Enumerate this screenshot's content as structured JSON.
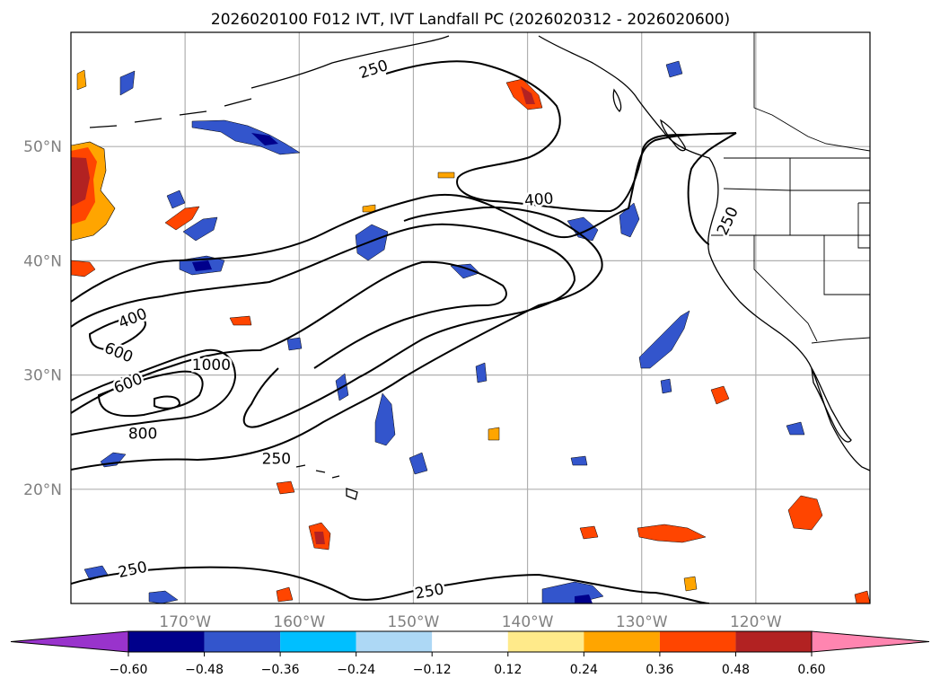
{
  "title": "2026020100 F012 IVT, IVT Landfall PC (2026020312 - 2026020600)",
  "map": {
    "lon_range": [
      180,
      110
    ],
    "lat_range": [
      10,
      60
    ],
    "lat_gridlines": [
      50,
      40,
      30,
      20
    ],
    "lon_gridlines": [
      170,
      160,
      150,
      140,
      130,
      120
    ],
    "lat_labels": [
      "50°N",
      "40°N",
      "30°N",
      "20°N"
    ],
    "lon_labels": [
      "170°W",
      "160°W",
      "150°W",
      "140°W",
      "130°W",
      "120°W"
    ]
  },
  "ivt_contour_labels": [
    {
      "text": "250",
      "lon": 153.5,
      "lat": 56.8,
      "angle": -18
    },
    {
      "text": "400",
      "lon": 139.0,
      "lat": 45.4,
      "angle": -5
    },
    {
      "text": "250",
      "lon": 122.5,
      "lat": 43.5,
      "angle": -65
    },
    {
      "text": "400",
      "lon": 174.6,
      "lat": 35.0,
      "angle": -22
    },
    {
      "text": "600",
      "lon": 175.8,
      "lat": 32.0,
      "angle": 22
    },
    {
      "text": "600",
      "lon": 175.0,
      "lat": 29.3,
      "angle": -22
    },
    {
      "text": "1000",
      "lon": 167.7,
      "lat": 30.9,
      "angle": 0
    },
    {
      "text": "800",
      "lon": 173.7,
      "lat": 24.9,
      "angle": 0
    },
    {
      "text": "250",
      "lon": 162.0,
      "lat": 22.7,
      "angle": 0
    },
    {
      "text": "250",
      "lon": 174.6,
      "lat": 13.0,
      "angle": -12
    },
    {
      "text": "250",
      "lon": 148.6,
      "lat": 11.1,
      "angle": -10
    }
  ],
  "colorbar": {
    "levels": [
      -0.6,
      -0.48,
      -0.36,
      -0.24,
      -0.12,
      0.12,
      0.24,
      0.36,
      0.48,
      0.6
    ],
    "tick_labels": [
      "−0.60",
      "−0.48",
      "−0.36",
      "−0.24",
      "−0.12",
      "0.12",
      "0.24",
      "0.36",
      "0.48",
      "0.60"
    ],
    "colors": [
      "#9933cc",
      "#00008b",
      "#3355cc",
      "#00bfff",
      "#add8f5",
      "#ffffff",
      "#ffea8a",
      "#ffa500",
      "#ff4500",
      "#b22222",
      "#ff85b0"
    ],
    "extend": "both"
  }
}
